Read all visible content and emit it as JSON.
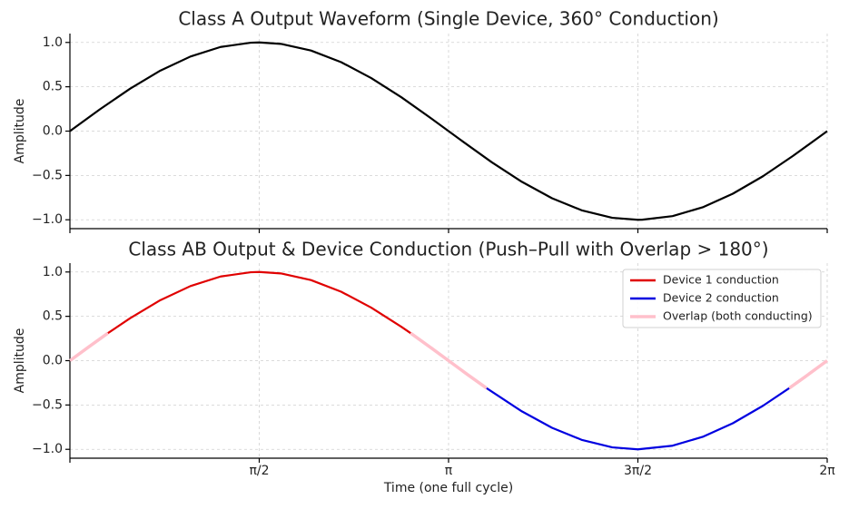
{
  "chart_data": [
    {
      "type": "line",
      "title": "Class A Output Waveform (Single Device, 360° Conduction)",
      "ylabel": "Amplitude",
      "grid": true,
      "xlim": [
        0,
        6.2832
      ],
      "ylim": [
        -1.1,
        1.1
      ],
      "xticks": [
        0,
        1.5708,
        3.1416,
        4.7124,
        6.2832
      ],
      "yticks": [
        {
          "value": 1,
          "label": "1.0"
        },
        {
          "value": 0.5,
          "label": "0.5"
        },
        {
          "value": 0,
          "label": "0.0"
        },
        {
          "value": -0.5,
          "label": "−0.5"
        },
        {
          "value": -1,
          "label": "−1.0"
        }
      ],
      "series": [
        {
          "name": null,
          "color": "#000000",
          "x": [
            0,
            0.25,
            0.5,
            0.75,
            1,
            1.25,
            1.5,
            1.5708,
            1.75,
            2,
            2.25,
            2.5,
            2.75,
            3,
            3.25,
            3.5,
            3.75,
            4,
            4.25,
            4.5,
            4.7124,
            4.75,
            5,
            5.25,
            5.5,
            5.75,
            6,
            6.25,
            6.2832
          ],
          "values": [
            0,
            0.247,
            0.479,
            0.682,
            0.841,
            0.949,
            0.997,
            1,
            0.984,
            0.909,
            0.778,
            0.598,
            0.382,
            0.141,
            -0.108,
            -0.351,
            -0.572,
            -0.757,
            -0.895,
            -0.978,
            -1,
            -0.999,
            -0.959,
            -0.859,
            -0.706,
            -0.509,
            -0.279,
            -0.033,
            0
          ]
        }
      ]
    },
    {
      "type": "line",
      "title": "Class AB Output & Device Conduction (Push–Pull with Overlap > 180°)",
      "ylabel": "Amplitude",
      "xlabel": "Time (one full cycle)",
      "grid": true,
      "legend": "upper right",
      "xlim": [
        0,
        6.2832
      ],
      "ylim": [
        -1.1,
        1.1
      ],
      "xticks": [
        0,
        {
          "value": 1.5708,
          "label": "π/2"
        },
        {
          "value": 3.1416,
          "label": "π"
        },
        {
          "value": 4.7124,
          "label": "3π/2"
        },
        {
          "value": 6.2832,
          "label": "2π"
        }
      ],
      "yticks": [
        {
          "value": 1,
          "label": "1.0"
        },
        {
          "value": 0.5,
          "label": "0.5"
        },
        {
          "value": 0,
          "label": "0.0"
        },
        {
          "value": -0.5,
          "label": "−0.5"
        },
        {
          "value": -1,
          "label": "−1.0"
        }
      ],
      "series": [
        {
          "name": "Device 1 conduction",
          "color": "#e00000",
          "x": [
            0.315,
            0.5,
            0.75,
            1,
            1.25,
            1.5,
            1.5708,
            1.75,
            2,
            2.25,
            2.5,
            2.75,
            2.827
          ],
          "values": [
            0.31,
            0.479,
            0.682,
            0.841,
            0.949,
            0.997,
            1,
            0.984,
            0.909,
            0.778,
            0.598,
            0.382,
            0.31
          ]
        },
        {
          "name": "Device 2 conduction",
          "color": "#0000e0",
          "x": [
            3.457,
            3.75,
            4,
            4.25,
            4.5,
            4.7124,
            5,
            5.25,
            5.5,
            5.75,
            5.968
          ],
          "values": [
            -0.31,
            -0.572,
            -0.757,
            -0.895,
            -0.978,
            -1,
            -0.959,
            -0.859,
            -0.706,
            -0.509,
            -0.31
          ]
        },
        {
          "name": "Overlap (both conducting)",
          "color": "#ffc0cb",
          "x": [
            0,
            0.15,
            0.315,
            1.5708,
            2.827,
            3,
            3.1416,
            3.3,
            3.457,
            4.7124,
            5.968,
            6.1,
            6.2832
          ],
          "values": [
            0,
            0.149,
            0.31,
            null,
            0.31,
            0.141,
            0,
            -0.158,
            -0.31,
            null,
            -0.31,
            -0.182,
            0
          ]
        }
      ]
    }
  ]
}
